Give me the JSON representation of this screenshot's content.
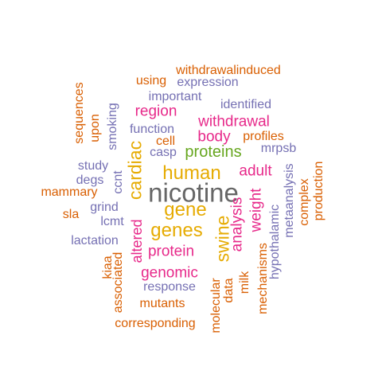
{
  "palette": {
    "orange": "#d95f02",
    "purple": "#7570b3",
    "pink": "#e7298a",
    "green": "#66a61e",
    "gold": "#e6ab02",
    "gray": "#666666"
  },
  "words": [
    {
      "id": "nicotine",
      "text": "nicotine",
      "color": "gray",
      "size": 4,
      "vertical": false
    },
    {
      "id": "human",
      "text": "human",
      "color": "gold",
      "size": 3,
      "vertical": false
    },
    {
      "id": "gene",
      "text": "gene",
      "color": "gold",
      "size": 3,
      "vertical": false
    },
    {
      "id": "genes",
      "text": "genes",
      "color": "gold",
      "size": 3,
      "vertical": false
    },
    {
      "id": "cardiac",
      "text": "cardiac",
      "color": "gold",
      "size": 3,
      "vertical": true
    },
    {
      "id": "swine",
      "text": "swine",
      "color": "gold",
      "size": 3,
      "vertical": true
    },
    {
      "id": "proteins",
      "text": "proteins",
      "color": "green",
      "size": 2,
      "vertical": false
    },
    {
      "id": "withdrawal",
      "text": "withdrawal",
      "color": "pink",
      "size": 2,
      "vertical": false
    },
    {
      "id": "region",
      "text": "region",
      "color": "pink",
      "size": 2,
      "vertical": false
    },
    {
      "id": "body",
      "text": "body",
      "color": "pink",
      "size": 2,
      "vertical": false
    },
    {
      "id": "adult",
      "text": "adult",
      "color": "pink",
      "size": 2,
      "vertical": false
    },
    {
      "id": "weight",
      "text": "weight",
      "color": "pink",
      "size": 2,
      "vertical": true
    },
    {
      "id": "analysis",
      "text": "analysis",
      "color": "pink",
      "size": 2,
      "vertical": true
    },
    {
      "id": "protein",
      "text": "protein",
      "color": "pink",
      "size": 2,
      "vertical": false
    },
    {
      "id": "genomic",
      "text": "genomic",
      "color": "pink",
      "size": 2,
      "vertical": false
    },
    {
      "id": "altered",
      "text": "altered",
      "color": "pink",
      "size": 2,
      "vertical": true
    },
    {
      "id": "expression",
      "text": "expression",
      "color": "purple",
      "size": 1,
      "vertical": false
    },
    {
      "id": "important",
      "text": "important",
      "color": "purple",
      "size": 1,
      "vertical": false
    },
    {
      "id": "identified",
      "text": "identified",
      "color": "purple",
      "size": 1,
      "vertical": false
    },
    {
      "id": "function",
      "text": "function",
      "color": "purple",
      "size": 1,
      "vertical": false
    },
    {
      "id": "casp",
      "text": "casp",
      "color": "purple",
      "size": 1,
      "vertical": false
    },
    {
      "id": "mrpsb",
      "text": "mrpsb",
      "color": "purple",
      "size": 1,
      "vertical": false
    },
    {
      "id": "study",
      "text": "study",
      "color": "purple",
      "size": 1,
      "vertical": false
    },
    {
      "id": "degs",
      "text": "degs",
      "color": "purple",
      "size": 1,
      "vertical": false
    },
    {
      "id": "grind",
      "text": "grind",
      "color": "purple",
      "size": 1,
      "vertical": false
    },
    {
      "id": "lcmt",
      "text": "lcmt",
      "color": "purple",
      "size": 1,
      "vertical": false
    },
    {
      "id": "lactation",
      "text": "lactation",
      "color": "purple",
      "size": 1,
      "vertical": false
    },
    {
      "id": "response",
      "text": "response",
      "color": "purple",
      "size": 1,
      "vertical": false
    },
    {
      "id": "smoking",
      "text": "smoking",
      "color": "purple",
      "size": 1,
      "vertical": true
    },
    {
      "id": "ccnt",
      "text": "ccnt",
      "color": "purple",
      "size": 1,
      "vertical": true
    },
    {
      "id": "metaanalysis",
      "text": "metaanalysis",
      "color": "purple",
      "size": 1,
      "vertical": true
    },
    {
      "id": "hypothalamic",
      "text": "hypothalamic",
      "color": "purple",
      "size": 1,
      "vertical": true
    },
    {
      "id": "withdrawalinduced",
      "text": "withdrawalinduced",
      "color": "orange",
      "size": 1,
      "vertical": false
    },
    {
      "id": "using",
      "text": "using",
      "color": "orange",
      "size": 1,
      "vertical": false
    },
    {
      "id": "cell",
      "text": "cell",
      "color": "orange",
      "size": 1,
      "vertical": false
    },
    {
      "id": "profiles",
      "text": "profiles",
      "color": "orange",
      "size": 1,
      "vertical": false
    },
    {
      "id": "mammary",
      "text": "mammary",
      "color": "orange",
      "size": 1,
      "vertical": false
    },
    {
      "id": "sla",
      "text": "sla",
      "color": "orange",
      "size": 1,
      "vertical": false
    },
    {
      "id": "mutants",
      "text": "mutants",
      "color": "orange",
      "size": 1,
      "vertical": false
    },
    {
      "id": "corresponding",
      "text": "corresponding",
      "color": "orange",
      "size": 1,
      "vertical": false
    },
    {
      "id": "sequences",
      "text": "sequences",
      "color": "orange",
      "size": 1,
      "vertical": true
    },
    {
      "id": "upon",
      "text": "upon",
      "color": "orange",
      "size": 1,
      "vertical": true
    },
    {
      "id": "production",
      "text": "production",
      "color": "orange",
      "size": 1,
      "vertical": true
    },
    {
      "id": "complex",
      "text": "complex",
      "color": "orange",
      "size": 1,
      "vertical": true
    },
    {
      "id": "kiaa",
      "text": "kiaa",
      "color": "orange",
      "size": 1,
      "vertical": true
    },
    {
      "id": "associated",
      "text": "associated",
      "color": "orange",
      "size": 1,
      "vertical": true
    },
    {
      "id": "molecular",
      "text": "molecular",
      "color": "orange",
      "size": 1,
      "vertical": true
    },
    {
      "id": "data",
      "text": "data",
      "color": "orange",
      "size": 1,
      "vertical": true
    },
    {
      "id": "milk",
      "text": "milk",
      "color": "orange",
      "size": 1,
      "vertical": true
    },
    {
      "id": "mechanisms",
      "text": "mechanisms",
      "color": "orange",
      "size": 1,
      "vertical": true
    }
  ]
}
